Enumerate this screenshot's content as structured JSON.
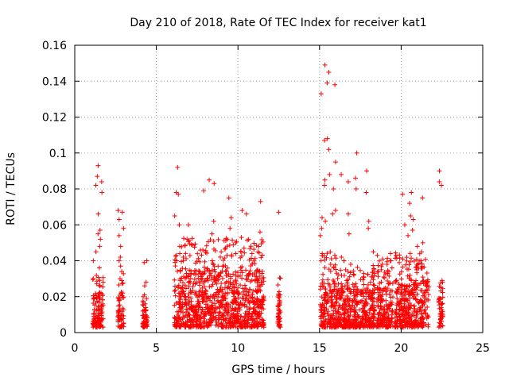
{
  "chart_data": {
    "type": "scatter",
    "title": "Day 210 of 2018, Rate Of TEC Index for receiver kat1",
    "xlabel": "GPS time / hours",
    "ylabel": "ROTI / TECUs",
    "xlim": [
      0,
      25
    ],
    "ylim": [
      0,
      0.16
    ],
    "xticks": [
      0,
      5,
      10,
      15,
      20,
      25
    ],
    "xtick_labels": [
      "0",
      "5",
      "10",
      "15",
      "20",
      "25"
    ],
    "yticks": [
      0,
      0.02,
      0.04,
      0.06,
      0.08,
      0.1,
      0.12,
      0.14,
      0.16
    ],
    "ytick_labels": [
      "0",
      "0.02",
      "0.04",
      "0.06",
      "0.08",
      "0.1",
      "0.12",
      "0.14",
      "0.16"
    ],
    "grid": true,
    "marker": "+",
    "color": "#ff0000",
    "clusters": [
      {
        "x_start": 1.1,
        "x_end": 1.75,
        "base_max": 0.022,
        "peaks": [
          0.093,
          0.087,
          0.084,
          0.082,
          0.078,
          0.066,
          0.057,
          0.055,
          0.052,
          0.048,
          0.045,
          0.04,
          0.036,
          0.03
        ]
      },
      {
        "x_start": 2.65,
        "x_end": 3.0,
        "base_max": 0.022,
        "peaks": [
          0.068,
          0.067,
          0.063,
          0.058,
          0.054,
          0.048,
          0.042,
          0.04,
          0.037,
          0.034,
          0.03
        ]
      },
      {
        "x_start": 4.15,
        "x_end": 4.45,
        "base_max": 0.014,
        "peaks": [
          0.04,
          0.039,
          0.028,
          0.026,
          0.021,
          0.016
        ]
      },
      {
        "x_start": 6.1,
        "x_end": 6.5,
        "base_max": 0.03,
        "peaks": [
          0.092,
          0.078,
          0.077,
          0.065,
          0.06,
          0.048,
          0.044,
          0.04
        ]
      },
      {
        "x_start": 6.5,
        "x_end": 11.6,
        "base_max": 0.035,
        "peaks": [
          0.085,
          0.083,
          0.079,
          0.075,
          0.073,
          0.068,
          0.066,
          0.064,
          0.062,
          0.06,
          0.058,
          0.056,
          0.055,
          0.053,
          0.05,
          0.049,
          0.047,
          0.045,
          0.044,
          0.042,
          0.04
        ]
      },
      {
        "x_start": 12.45,
        "x_end": 12.6,
        "base_max": 0.021,
        "peaks": [
          0.067,
          0.021,
          0.018,
          0.015
        ]
      },
      {
        "x_start": 15.05,
        "x_end": 16.0,
        "base_max": 0.03,
        "peaks": [
          0.149,
          0.145,
          0.139,
          0.138,
          0.133,
          0.108,
          0.107,
          0.102,
          0.095,
          0.088,
          0.085,
          0.082,
          0.08,
          0.068,
          0.066,
          0.064,
          0.062,
          0.058,
          0.054,
          0.043,
          0.038,
          0.036
        ]
      },
      {
        "x_start": 16.0,
        "x_end": 18.4,
        "base_max": 0.025,
        "peaks": [
          0.1,
          0.09,
          0.088,
          0.086,
          0.084,
          0.08,
          0.078,
          0.066,
          0.062,
          0.058,
          0.055,
          0.045,
          0.042,
          0.04,
          0.038,
          0.035,
          0.033,
          0.028
        ]
      },
      {
        "x_start": 18.5,
        "x_end": 19.5,
        "base_max": 0.028,
        "peaks": [
          0.044,
          0.043,
          0.041,
          0.04,
          0.038,
          0.036,
          0.034,
          0.033
        ]
      },
      {
        "x_start": 19.6,
        "x_end": 21.7,
        "base_max": 0.03,
        "peaks": [
          0.078,
          0.077,
          0.075,
          0.072,
          0.065,
          0.063,
          0.06,
          0.057,
          0.054,
          0.05,
          0.048,
          0.045,
          0.043,
          0.041,
          0.04,
          0.038,
          0.035
        ]
      },
      {
        "x_start": 22.3,
        "x_end": 22.55,
        "base_max": 0.02,
        "peaks": [
          0.09,
          0.084,
          0.082,
          0.029,
          0.028,
          0.025
        ]
      }
    ]
  }
}
